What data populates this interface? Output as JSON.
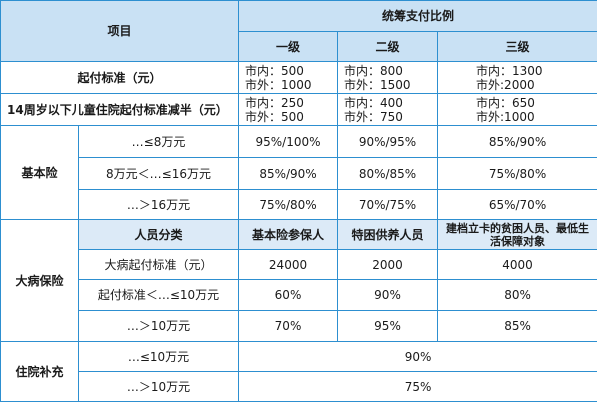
{
  "header": {
    "item": "项目",
    "ratio": "统筹支付比例",
    "level1": "一级",
    "level2": "二级",
    "level3": "三级"
  },
  "deductible": {
    "label": "起付标准（元）",
    "l1": "市内：500\n市外：1000",
    "l2": "市内：800\n市外：1500",
    "l3": "市内：1300\n市外:2000"
  },
  "child": {
    "label": "14周岁以下儿童住院起付标准减半（元）",
    "l1": "市内：250\n市外：500",
    "l2": "市内：400\n市外：750",
    "l3": "市内：650\n市外:1000"
  },
  "basic": {
    "label": "基本险",
    "rows": [
      {
        "range": "…≤8万元",
        "l1": "95%/100%",
        "l2": "90%/95%",
        "l3": "85%/90%"
      },
      {
        "range": "8万元＜…≤16万元",
        "l1": "85%/90%",
        "l2": "80%/85%",
        "l3": "75%/80%"
      },
      {
        "range": "…＞16万元",
        "l1": "75%/80%",
        "l2": "70%/75%",
        "l3": "65%/70%"
      }
    ]
  },
  "major": {
    "label": "大病保险",
    "sub_header": {
      "category": "人员分类",
      "insured": "基本险参保人",
      "special": "特困供养人员",
      "poor": "建档立卡的贫困人员、最低生活保障对象"
    },
    "rows": [
      {
        "range": "大病起付标准（元）",
        "a": "24000",
        "b": "2000",
        "c": "4000"
      },
      {
        "range": "起付标准＜…≤10万元",
        "a": "60%",
        "b": "90%",
        "c": "80%"
      },
      {
        "range": "…＞10万元",
        "a": "70%",
        "b": "95%",
        "c": "85%"
      }
    ]
  },
  "subsidy": {
    "label": "住院补充",
    "rows": [
      {
        "range": "…≤10万元",
        "value": "90%"
      },
      {
        "range": "…＞10万元",
        "value": "75%"
      }
    ]
  }
}
